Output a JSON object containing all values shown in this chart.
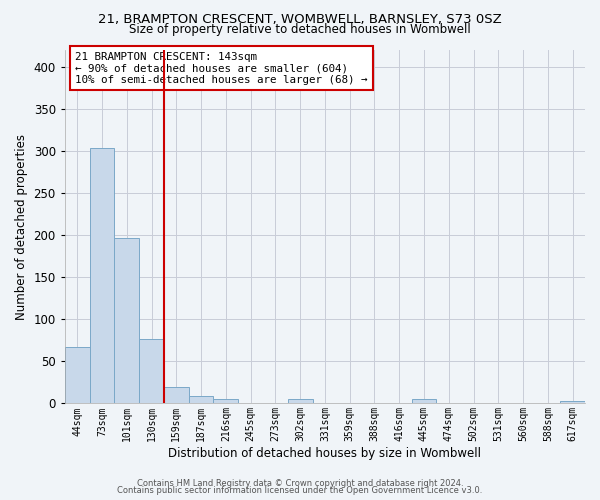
{
  "title": "21, BRAMPTON CRESCENT, WOMBWELL, BARNSLEY, S73 0SZ",
  "subtitle": "Size of property relative to detached houses in Wombwell",
  "xlabel": "Distribution of detached houses by size in Wombwell",
  "ylabel": "Number of detached properties",
  "bin_labels": [
    "44sqm",
    "73sqm",
    "101sqm",
    "130sqm",
    "159sqm",
    "187sqm",
    "216sqm",
    "245sqm",
    "273sqm",
    "302sqm",
    "331sqm",
    "359sqm",
    "388sqm",
    "416sqm",
    "445sqm",
    "474sqm",
    "502sqm",
    "531sqm",
    "560sqm",
    "588sqm",
    "617sqm"
  ],
  "bar_heights": [
    67,
    303,
    197,
    77,
    19,
    9,
    5,
    0,
    0,
    5,
    0,
    0,
    0,
    0,
    5,
    0,
    0,
    0,
    0,
    0,
    3
  ],
  "bar_color": "#c8d8ea",
  "bar_edge_color": "#7aa8c8",
  "vline_color": "#cc0000",
  "vline_x": 3.5,
  "ylim": [
    0,
    420
  ],
  "yticks": [
    0,
    50,
    100,
    150,
    200,
    250,
    300,
    350,
    400
  ],
  "annotation_title": "21 BRAMPTON CRESCENT: 143sqm",
  "annotation_line1": "← 90% of detached houses are smaller (604)",
  "annotation_line2": "10% of semi-detached houses are larger (68) →",
  "annotation_box_facecolor": "#ffffff",
  "annotation_box_edgecolor": "#cc0000",
  "footer1": "Contains HM Land Registry data © Crown copyright and database right 2024.",
  "footer2": "Contains public sector information licensed under the Open Government Licence v3.0.",
  "background_color": "#f0f4f8",
  "grid_color": "#c8ccd8",
  "title_fontsize": 9.5,
  "subtitle_fontsize": 8.5
}
